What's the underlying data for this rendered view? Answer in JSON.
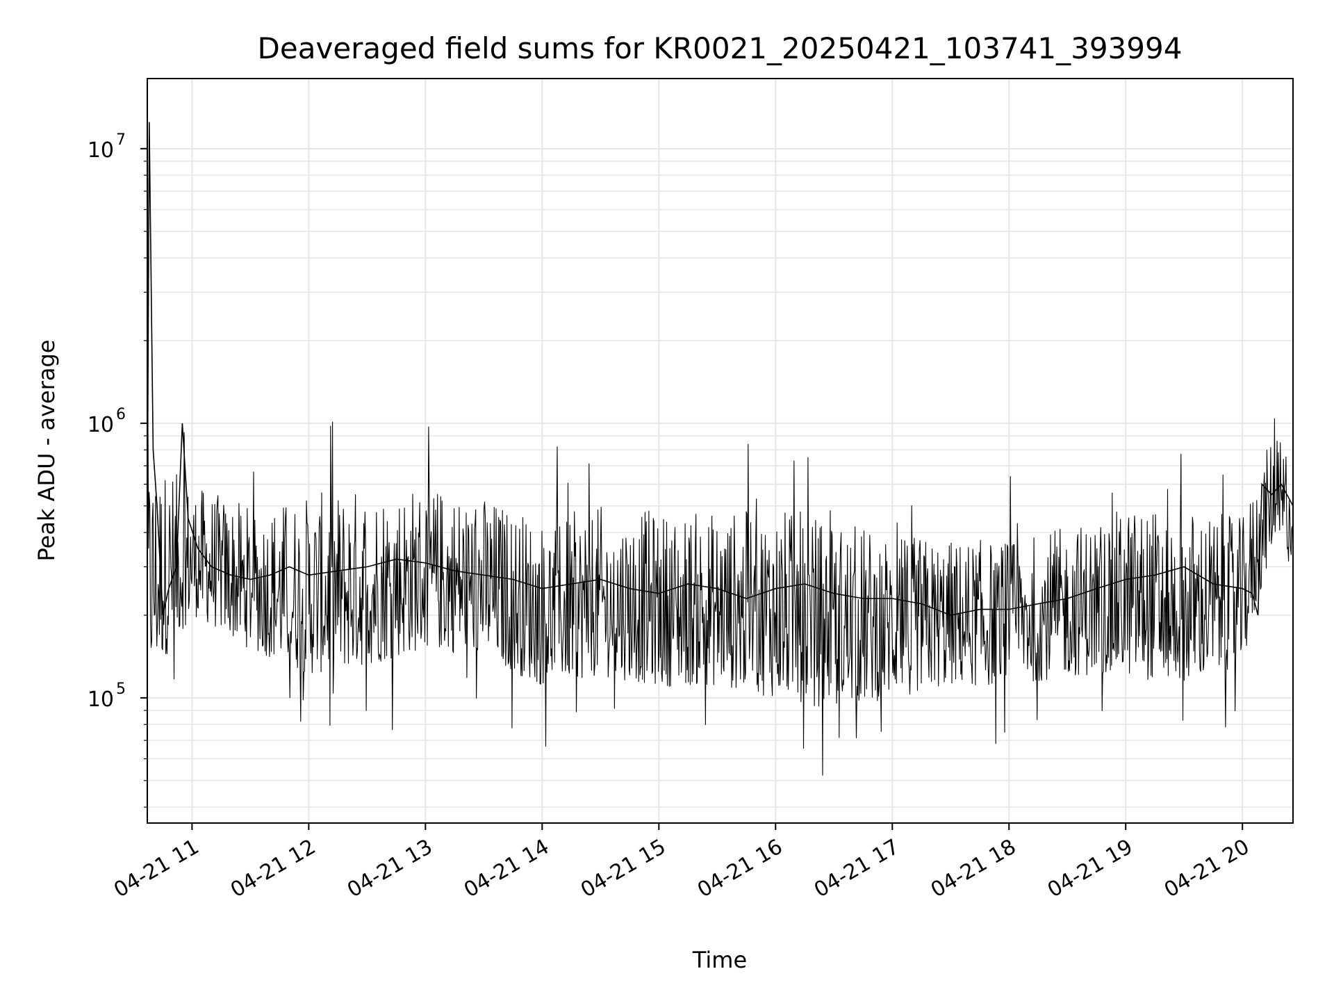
{
  "chart_data": {
    "type": "line",
    "title": "Deaveraged field sums for KR0021_20250421_103741_393994",
    "xlabel": "Time",
    "ylabel": "Peak ADU - average",
    "yscale": "log",
    "grid": true,
    "ylim": [
      35000,
      18000000
    ],
    "xlim": [
      "2025-04-21 10:37",
      "2025-04-21 20:26"
    ],
    "x_ticks": [
      {
        "t": "2025-04-21 11:00",
        "label": "04-21 11"
      },
      {
        "t": "2025-04-21 12:00",
        "label": "04-21 12"
      },
      {
        "t": "2025-04-21 13:00",
        "label": "04-21 13"
      },
      {
        "t": "2025-04-21 14:00",
        "label": "04-21 14"
      },
      {
        "t": "2025-04-21 15:00",
        "label": "04-21 15"
      },
      {
        "t": "2025-04-21 16:00",
        "label": "04-21 16"
      },
      {
        "t": "2025-04-21 17:00",
        "label": "04-21 17"
      },
      {
        "t": "2025-04-21 18:00",
        "label": "04-21 18"
      },
      {
        "t": "2025-04-21 19:00",
        "label": "04-21 19"
      },
      {
        "t": "2025-04-21 20:00",
        "label": "04-21 20"
      }
    ],
    "y_ticks": [
      {
        "value": 100000,
        "base": "10",
        "exp": "5"
      },
      {
        "value": 1000000,
        "base": "10",
        "exp": "6"
      },
      {
        "value": 10000000,
        "base": "10",
        "exp": "7"
      }
    ],
    "line_color": "#000000",
    "series": [
      {
        "x": [
          "2025-04-21 10:37",
          "2025-04-21 10:38",
          "2025-04-21 10:40",
          "2025-04-21 10:42",
          "2025-04-21 10:45",
          "2025-04-21 10:48",
          "2025-04-21 10:52",
          "2025-04-21 10:55",
          "2025-04-21 10:58",
          "2025-04-21 11:03",
          "2025-04-21 11:10",
          "2025-04-21 11:20",
          "2025-04-21 11:30",
          "2025-04-21 11:40",
          "2025-04-21 11:50",
          "2025-04-21 12:00",
          "2025-04-21 12:15",
          "2025-04-21 12:30",
          "2025-04-21 12:45",
          "2025-04-21 13:00",
          "2025-04-21 13:15",
          "2025-04-21 13:30",
          "2025-04-21 13:45",
          "2025-04-21 14:00",
          "2025-04-21 14:15",
          "2025-04-21 14:30",
          "2025-04-21 14:45",
          "2025-04-21 15:00",
          "2025-04-21 15:15",
          "2025-04-21 15:30",
          "2025-04-21 15:45",
          "2025-04-21 16:00",
          "2025-04-21 16:15",
          "2025-04-21 16:30",
          "2025-04-21 16:45",
          "2025-04-21 17:00",
          "2025-04-21 17:15",
          "2025-04-21 17:30",
          "2025-04-21 17:45",
          "2025-04-21 18:00",
          "2025-04-21 18:15",
          "2025-04-21 18:30",
          "2025-04-21 18:45",
          "2025-04-21 19:00",
          "2025-04-21 19:15",
          "2025-04-21 19:30",
          "2025-04-21 19:45",
          "2025-04-21 20:00",
          "2025-04-21 20:05",
          "2025-04-21 20:08",
          "2025-04-21 20:10",
          "2025-04-21 20:15",
          "2025-04-21 20:20",
          "2025-04-21 20:26"
        ],
        "y": [
          400000,
          12500000,
          800000,
          500000,
          200000,
          250000,
          300000,
          1000000,
          450000,
          350000,
          300000,
          280000,
          270000,
          280000,
          300000,
          280000,
          290000,
          300000,
          320000,
          310000,
          290000,
          280000,
          270000,
          250000,
          260000,
          270000,
          250000,
          240000,
          260000,
          250000,
          230000,
          250000,
          260000,
          240000,
          230000,
          230000,
          220000,
          200000,
          210000,
          210000,
          220000,
          230000,
          250000,
          270000,
          280000,
          300000,
          260000,
          250000,
          240000,
          200000,
          600000,
          550000,
          600000,
          500000
        ]
      }
    ],
    "envelope": {
      "x": [
        "2025-04-21 10:40",
        "2025-04-21 11:00",
        "2025-04-21 11:30",
        "2025-04-21 12:00",
        "2025-04-21 12:30",
        "2025-04-21 13:00",
        "2025-04-21 13:30",
        "2025-04-21 14:00",
        "2025-04-21 14:30",
        "2025-04-21 15:00",
        "2025-04-21 15:30",
        "2025-04-21 16:00",
        "2025-04-21 16:30",
        "2025-04-21 17:00",
        "2025-04-21 17:30",
        "2025-04-21 18:00",
        "2025-04-21 18:30",
        "2025-04-21 19:00",
        "2025-04-21 19:30",
        "2025-04-21 20:00",
        "2025-04-21 20:15",
        "2025-04-21 20:26"
      ],
      "low": [
        120000,
        200000,
        150000,
        120000,
        130000,
        150000,
        140000,
        110000,
        120000,
        110000,
        110000,
        100000,
        90000,
        100000,
        110000,
        110000,
        120000,
        120000,
        110000,
        130000,
        350000,
        300000
      ],
      "high": [
        750000,
        600000,
        500000,
        550000,
        600000,
        600000,
        550000,
        450000,
        500000,
        480000,
        480000,
        500000,
        450000,
        400000,
        380000,
        380000,
        420000,
        500000,
        500000,
        450000,
        900000,
        850000
      ]
    }
  }
}
